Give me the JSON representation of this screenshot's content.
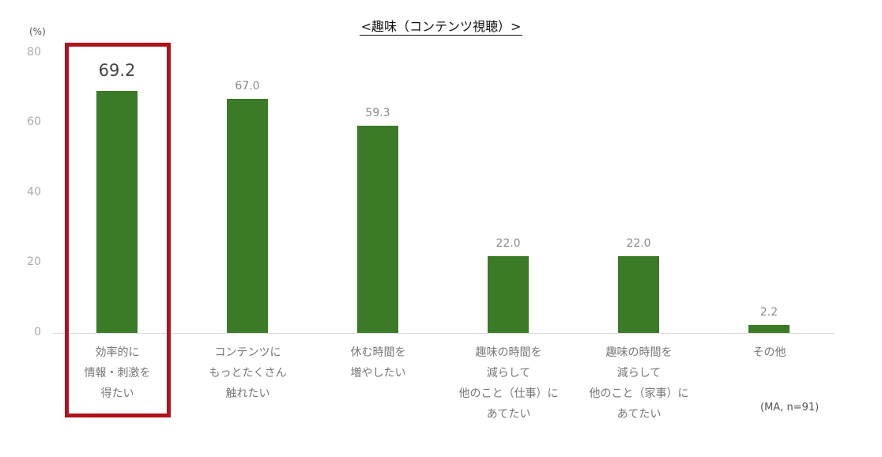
{
  "chart_data": {
    "type": "bar",
    "title": "<趣味（コンテンツ視聴）>",
    "ylabel": "(%)",
    "xlabel": "",
    "ylim": [
      0,
      80
    ],
    "yticks": [
      "80",
      "60",
      "40",
      "20",
      "0"
    ],
    "categories": [
      "効率的に\n情報・刺激を\n得たい",
      "コンテンツに\nもっとたくさん\n触れたい",
      "休む時間を\n増やしたい",
      "趣味の時間を\n減らして\n他のこと（仕事）に\nあてたい",
      "趣味の時間を\n減らして\n他のこと（家事）に\nあてたい",
      "その他"
    ],
    "values": [
      69.2,
      67.0,
      59.3,
      22.0,
      22.0,
      2.2
    ],
    "value_labels": [
      "69.2",
      "67.0",
      "59.3",
      "22.0",
      "22.0",
      "2.2"
    ],
    "bar_color": "#3b7a27",
    "highlight": {
      "category_index": 0,
      "color": "#b0121b"
    },
    "note": "(MA, n=91)",
    "grid": false,
    "legend": null
  }
}
